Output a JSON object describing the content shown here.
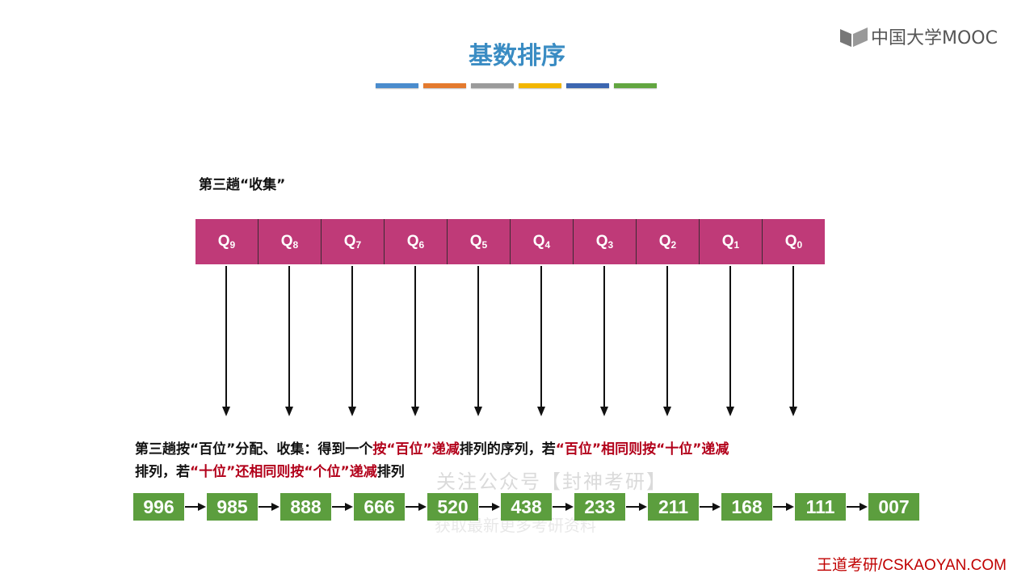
{
  "brand": {
    "logo_text": "中国大学MOOC"
  },
  "slide": {
    "title": "基数排序",
    "accent_colors": [
      "#4a8ccd",
      "#e47a2e",
      "#9a9a9a",
      "#f2b600",
      "#3c66b0",
      "#62a640"
    ],
    "subtitle": "第三趟“收集”"
  },
  "queues": [
    {
      "label": "Q",
      "sub": "9"
    },
    {
      "label": "Q",
      "sub": "8"
    },
    {
      "label": "Q",
      "sub": "7"
    },
    {
      "label": "Q",
      "sub": "6"
    },
    {
      "label": "Q",
      "sub": "5"
    },
    {
      "label": "Q",
      "sub": "4"
    },
    {
      "label": "Q",
      "sub": "3"
    },
    {
      "label": "Q",
      "sub": "2"
    },
    {
      "label": "Q",
      "sub": "1"
    },
    {
      "label": "Q",
      "sub": "0"
    }
  ],
  "description": {
    "seg1": "第三趟按“百位”分配、收集：得到一个",
    "seg2": "按“百位”递减",
    "seg3": "排列的序列，若",
    "seg4": "“百位”相同则按“十位”递减",
    "seg5": "排列，若",
    "seg6": "“十位”还相同则按“个位”递减",
    "seg7": "排列"
  },
  "sequence": [
    "996",
    "985",
    "888",
    "666",
    "520",
    "438",
    "233",
    "211",
    "168",
    "111",
    "007"
  ],
  "watermark": {
    "line1": "关注公众号【封神考研】",
    "line2": "获取最新更多考研资料"
  },
  "footer": "王道考研/CSKAOYAN.COM",
  "colors": {
    "title": "#3a8cc3",
    "queue": "#bf3a78",
    "node": "#5c9e3e",
    "highlight": "#b2001a"
  }
}
